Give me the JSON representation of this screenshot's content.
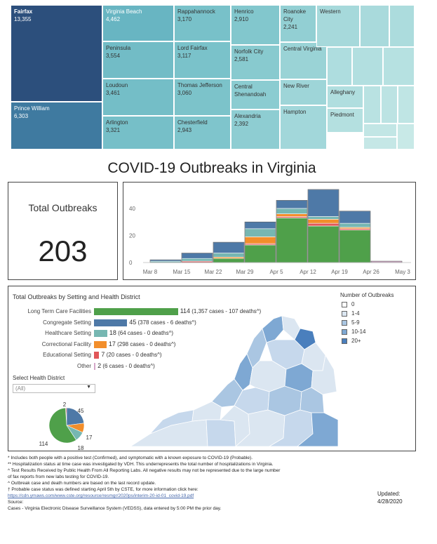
{
  "treemap": {
    "cells": [
      {
        "name": "Fairfax",
        "value": "13,355",
        "color": "#2c4f7c",
        "text": "#ffffff"
      },
      {
        "name": "Prince William",
        "value": "6,303",
        "color": "#3f7aa0",
        "text": "#ffffff"
      },
      {
        "name": "Virginia Beach",
        "value": "4,462",
        "color": "#68b5c2",
        "text": "#ffffff"
      },
      {
        "name": "Peninsula",
        "value": "3,554",
        "color": "#72bcc6",
        "text": "#333333"
      },
      {
        "name": "Loudoun",
        "value": "3,461",
        "color": "#74bec7",
        "text": "#333333"
      },
      {
        "name": "Arlington",
        "value": "3,321",
        "color": "#76bfc8",
        "text": "#333333"
      },
      {
        "name": "Rappahannock",
        "value": "3,170",
        "color": "#78c1c9",
        "text": "#333333"
      },
      {
        "name": "Lord Fairfax",
        "value": "3,117",
        "color": "#7ac2ca",
        "text": "#333333"
      },
      {
        "name": "Thomas Jefferson",
        "value": "3,060",
        "color": "#7cc3ca",
        "text": "#333333"
      },
      {
        "name": "Chesterfield",
        "value": "2,943",
        "color": "#7fc5cc",
        "text": "#333333"
      },
      {
        "name": "Henrico",
        "value": "2,910",
        "color": "#82c7cd",
        "text": "#333333"
      },
      {
        "name": "Norfolk City",
        "value": "2,581",
        "color": "#88cacf",
        "text": "#333333"
      },
      {
        "name": "Central Shenandoah",
        "value": "",
        "color": "#8bccd1",
        "text": "#333333"
      },
      {
        "name": "Alexandria",
        "value": "2,392",
        "color": "#8ecdd2",
        "text": "#333333"
      },
      {
        "name": "Roanoke City",
        "value": "2,241",
        "color": "#92cfd3",
        "text": "#333333"
      },
      {
        "name": "Central Virginia",
        "value": "",
        "color": "#9ad3d6",
        "text": "#333333"
      },
      {
        "name": "New River",
        "value": "",
        "color": "#9ed5d8",
        "text": "#333333"
      },
      {
        "name": "Hampton",
        "value": "",
        "color": "#a2d7da",
        "text": "#333333"
      },
      {
        "name": "Western",
        "value": "",
        "color": "#a6d9db",
        "text": "#333333"
      },
      {
        "name": "Alleghany",
        "value": "",
        "color": "#b0dedf",
        "text": "#333333"
      },
      {
        "name": "Piedmont",
        "value": "",
        "color": "#b4e0e0",
        "text": "#333333"
      },
      {
        "name": "",
        "value": "",
        "color": "#a9dadc",
        "text": "#333333"
      },
      {
        "name": "",
        "value": "",
        "color": "#acdcdd",
        "text": "#333333"
      },
      {
        "name": "",
        "value": "",
        "color": "#aedddf",
        "text": "#333333"
      },
      {
        "name": "",
        "value": "",
        "color": "#b2dfe0",
        "text": "#333333"
      },
      {
        "name": "",
        "value": "",
        "color": "#b6e1e1",
        "text": "#333333"
      },
      {
        "name": "",
        "value": "",
        "color": "#b9e2e2",
        "text": "#333333"
      },
      {
        "name": "",
        "value": "",
        "color": "#bce3e3",
        "text": "#333333"
      },
      {
        "name": "",
        "value": "",
        "color": "#bfe5e4",
        "text": "#333333"
      },
      {
        "name": "",
        "value": "",
        "color": "#c2e6e5",
        "text": "#333333"
      },
      {
        "name": "",
        "value": "",
        "color": "#c5e7e6",
        "text": "#333333"
      },
      {
        "name": "",
        "value": "",
        "color": "#c8e9e7",
        "text": "#333333"
      }
    ]
  },
  "title": "COVID-19 Outbreaks in Virginia",
  "kpi": {
    "label": "Total Outbreaks",
    "value": "203"
  },
  "chart_data": [
    {
      "type": "bar",
      "stacked": true,
      "categories": [
        "Mar 8",
        "Mar 15",
        "Mar 22",
        "Mar 29",
        "Apr 5",
        "Apr 12",
        "Apr 19",
        "Apr 26"
      ],
      "x_tick_labels": [
        "Mar 8",
        "Mar 15",
        "Mar 22",
        "Mar 29",
        "Apr 5",
        "Apr 12",
        "Apr 19",
        "Apr 26",
        "May 3"
      ],
      "y_ticks": [
        "0",
        "20",
        "40"
      ],
      "ylim": [
        0,
        55
      ],
      "series": [
        {
          "color": "#4fa04a",
          "values": [
            0,
            0,
            3,
            13,
            33,
            27,
            24,
            0
          ]
        },
        {
          "color": "#e15759",
          "values": [
            0,
            1,
            0,
            1,
            1,
            2,
            1,
            0
          ]
        },
        {
          "color": "#f28e2b",
          "values": [
            0,
            0,
            1,
            5,
            2,
            3,
            1,
            0
          ]
        },
        {
          "color": "#76b7b2",
          "values": [
            1,
            2,
            3,
            6,
            4,
            2,
            3,
            0
          ]
        },
        {
          "color": "#4e79a7",
          "values": [
            1,
            4,
            8,
            5,
            6,
            20,
            9,
            0
          ]
        },
        {
          "color": "#d4a6c8",
          "values": [
            0,
            0,
            0,
            0,
            0,
            0,
            0,
            1
          ]
        }
      ]
    },
    {
      "type": "bar",
      "title": "Total Outbreaks by Setting and Health District",
      "categories": [
        "Long Term Care Facilities",
        "Congregate Setting",
        "Healthcare Setting",
        "Correctional Facility",
        "Educational Setting",
        "Other"
      ],
      "values": [
        114,
        45,
        18,
        17,
        7,
        2
      ],
      "details": [
        "(1,357 cases - 107 deaths^)",
        "(378 cases - 6 deaths^)",
        "(64 cases - 0 deaths^)",
        "(298 cases - 0 deaths^)",
        "(20 cases - 0 deaths^)",
        "(6 cases - 0 deaths^)"
      ],
      "colors": [
        "#4fa04a",
        "#4e79a7",
        "#76b7b2",
        "#f28e2b",
        "#e15759",
        "#d4a6c8"
      ]
    },
    {
      "type": "pie",
      "labels": [
        "114",
        "45",
        "17",
        "18",
        "2"
      ],
      "values": [
        114,
        45,
        17,
        18,
        2
      ],
      "colors": [
        "#4fa04a",
        "#4e79a7",
        "#f28e2b",
        "#76b7b2",
        "#e15759"
      ]
    }
  ],
  "legend": {
    "title": "Number of Outbreaks",
    "items": [
      {
        "label": "0",
        "color": "#ffffff"
      },
      {
        "label": "1-4",
        "color": "#dbe6f1"
      },
      {
        "label": "5-9",
        "color": "#aac6e2"
      },
      {
        "label": "10-14",
        "color": "#7ea8d3"
      },
      {
        "label": "20+",
        "color": "#4a7fbd"
      }
    ]
  },
  "district": {
    "label": "Select Health District",
    "value": "(All)"
  },
  "footnotes": [
    "* Includes both people with a positive test (Confirmed), and symptomatic with a known exposure to COVID-19 (Probable).",
    "** Hospitalization status at time case was investigated by VDH. This underrepresents the total number of hospitalizations in Virginia.",
    "^ Test Results Received by Public Health From All Reporting Labs. All negative results may not be represented due to the large number",
    "of fax reports from new labs testing for COVID-19.",
    "^ Outbreak case and death numbers are based on the last record update.",
    "† Probable case status was defined starting April 5th by CSTE, for more information click here:",
    "https://cdn.ymaws.com/www.cste.org/resource/resmgr/2020ps/interim-20-id-01_covid-19.pdf",
    "Source:",
    "Cases - Virginia Electronic Disease Surveillance System (VEDSS), data entered by 5:00 PM the prior day."
  ],
  "updated": {
    "label": "Updated:",
    "date": "4/28/2020"
  }
}
